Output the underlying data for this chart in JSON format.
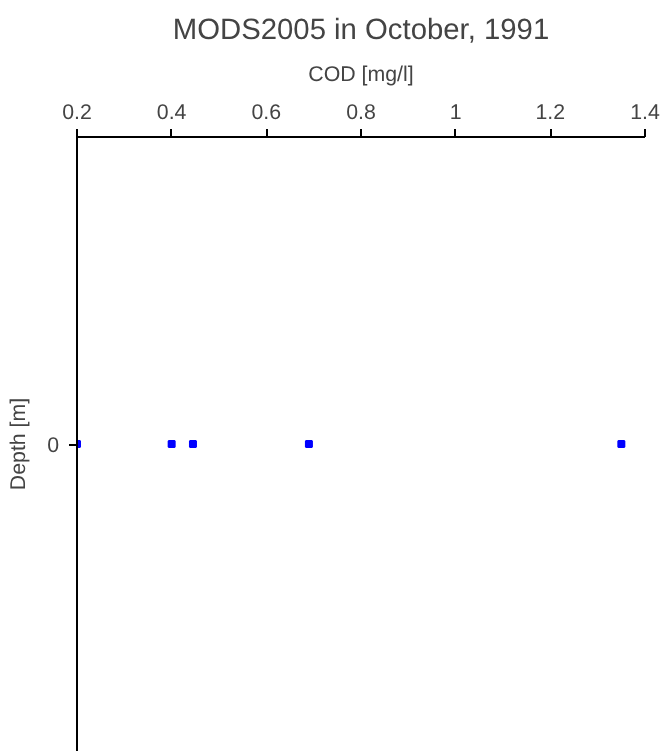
{
  "chart_data": {
    "type": "scatter",
    "orientation": "horizontal",
    "title": "MODS2005 in October, 1991",
    "xlabel": "COD [mg/l]",
    "ylabel": "Depth [m]",
    "categories": [
      "0"
    ],
    "series": [
      {
        "color": "#0000ff",
        "x": [
          "0",
          "0",
          "0",
          "0",
          "0"
        ],
        "values": [
          0.2,
          0.4,
          0.445,
          0.69,
          1.35
        ]
      }
    ],
    "xlim": [
      0.2,
      1.4
    ],
    "xticks": [
      {
        "value": 0.2,
        "label": "0.2"
      },
      {
        "value": 0.4,
        "label": "0.4"
      },
      {
        "value": 0.6,
        "label": "0.6"
      },
      {
        "value": 0.8,
        "label": "0.8"
      },
      {
        "value": 1,
        "label": "1"
      },
      {
        "value": 1.2,
        "label": "1.2"
      },
      {
        "value": 1.4,
        "label": "1.4"
      }
    ],
    "grid": false,
    "marker": "square"
  }
}
